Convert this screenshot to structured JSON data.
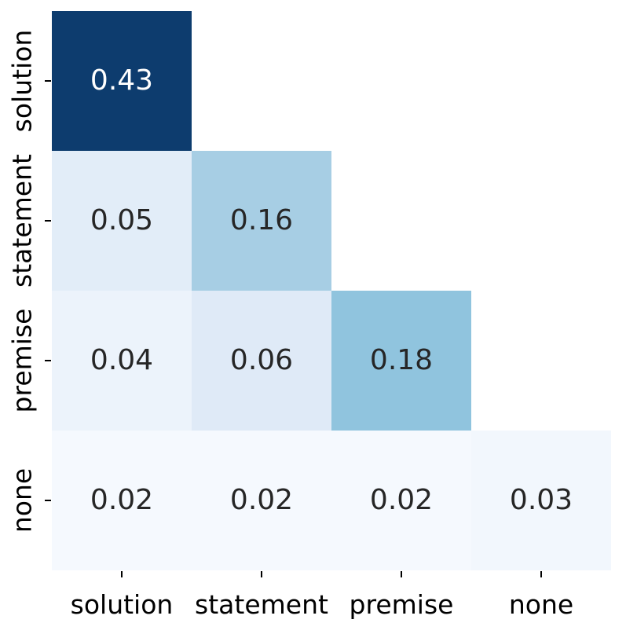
{
  "figure": {
    "background": "#ffffff",
    "tick_color": "#000000",
    "axis_label_color": "#000000"
  },
  "chart_data": {
    "type": "heatmap",
    "title": "",
    "xlabel": "",
    "ylabel": "",
    "x_categories": [
      "solution",
      "statement",
      "premise",
      "none"
    ],
    "y_categories": [
      "solution",
      "statement",
      "premise",
      "none"
    ],
    "mask": "upper-triangle-hidden",
    "colormap": "Blues",
    "color_range": [
      0,
      0.43
    ],
    "grid": false,
    "legend": "none",
    "matrix": [
      [
        0.43,
        null,
        null,
        null
      ],
      [
        0.05,
        0.16,
        null,
        null
      ],
      [
        0.04,
        0.06,
        0.18,
        null
      ],
      [
        0.02,
        0.02,
        0.02,
        0.03
      ]
    ],
    "cells": [
      {
        "row": "solution",
        "col": "solution",
        "value": 0.43,
        "label": "0.43",
        "bg": "#0d3c6e",
        "text_color": "#ffffff"
      },
      {
        "row": "statement",
        "col": "solution",
        "value": 0.05,
        "label": "0.05",
        "bg": "#e2edf8",
        "text_color": "#262626"
      },
      {
        "row": "statement",
        "col": "statement",
        "value": 0.16,
        "label": "0.16",
        "bg": "#a7cee4",
        "text_color": "#262626"
      },
      {
        "row": "premise",
        "col": "solution",
        "value": 0.04,
        "label": "0.04",
        "bg": "#ecf3fb",
        "text_color": "#262626"
      },
      {
        "row": "premise",
        "col": "statement",
        "value": 0.06,
        "label": "0.06",
        "bg": "#dfeaf7",
        "text_color": "#262626"
      },
      {
        "row": "premise",
        "col": "premise",
        "value": 0.18,
        "label": "0.18",
        "bg": "#90c4de",
        "text_color": "#262626"
      },
      {
        "row": "none",
        "col": "solution",
        "value": 0.02,
        "label": "0.02",
        "bg": "#f5f9fe",
        "text_color": "#262626"
      },
      {
        "row": "none",
        "col": "statement",
        "value": 0.02,
        "label": "0.02",
        "bg": "#f5f9fe",
        "text_color": "#262626"
      },
      {
        "row": "none",
        "col": "premise",
        "value": 0.02,
        "label": "0.02",
        "bg": "#f5f9fe",
        "text_color": "#262626"
      },
      {
        "row": "none",
        "col": "none",
        "value": 0.03,
        "label": "0.03",
        "bg": "#f2f7fd",
        "text_color": "#262626"
      }
    ]
  }
}
